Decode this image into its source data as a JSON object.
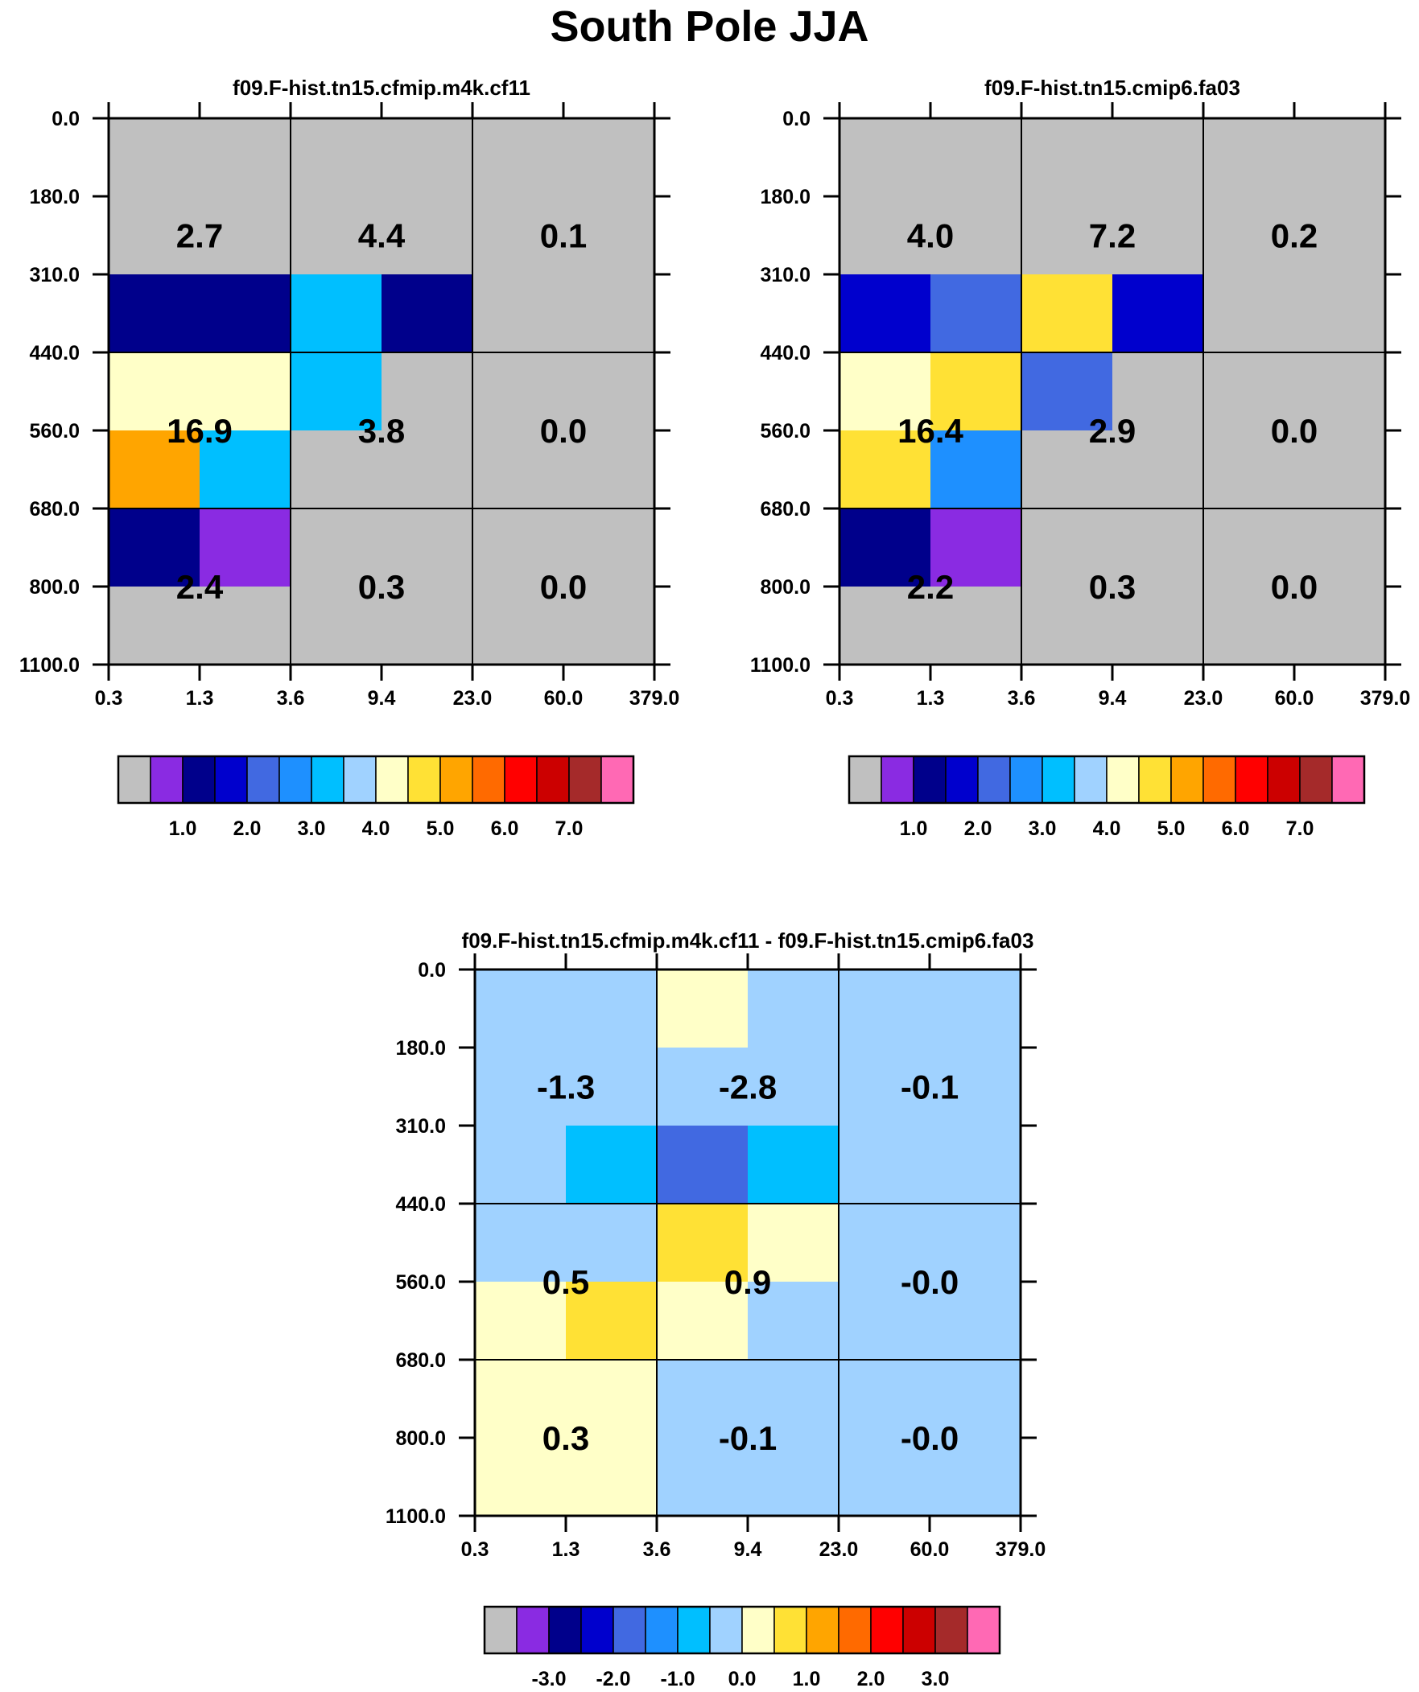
{
  "title": "South Pole JJA",
  "chart_data": [
    {
      "type": "heatmap",
      "title": "f09.F-hist.tn15.cfmip.m4k.cf11",
      "x_ticks": [
        "0.3",
        "1.3",
        "3.6",
        "9.4",
        "23.0",
        "60.0",
        "379.0"
      ],
      "y_ticks": [
        "0.0",
        "180.0",
        "310.0",
        "440.0",
        "560.0",
        "680.0",
        "800.0",
        "1100.0"
      ],
      "cells": [
        [
          "gray",
          "gray",
          "gray",
          "gray",
          "gray",
          "gray"
        ],
        [
          "gray",
          "gray",
          "gray",
          "gray",
          "gray",
          "gray"
        ],
        [
          "navy",
          "navy",
          "deepskyblue",
          "navy",
          "gray",
          "gray"
        ],
        [
          "lightyellow",
          "lightyellow",
          "deepskyblue",
          "gray",
          "gray",
          "gray"
        ],
        [
          "orange",
          "deepskyblue",
          "gray",
          "gray",
          "gray",
          "gray"
        ],
        [
          "navy",
          "purple",
          "gray",
          "gray",
          "gray",
          "gray"
        ],
        [
          "gray",
          "gray",
          "gray",
          "gray",
          "gray",
          "gray"
        ]
      ],
      "block_values": [
        [
          "2.7",
          "4.4",
          "0.1"
        ],
        [
          "16.9",
          "3.8",
          "0.0"
        ],
        [
          "2.4",
          "0.3",
          "0.0"
        ]
      ],
      "colorbar": {
        "labels": [
          "1.0",
          "2.0",
          "3.0",
          "4.0",
          "5.0",
          "6.0",
          "7.0"
        ],
        "colors": [
          "#c0c0c0",
          "#8a2be2",
          "#00008b",
          "#0000cd",
          "#4169e1",
          "#1e90ff",
          "#00bfff",
          "#a0d2ff",
          "#ffffc8",
          "#ffe135",
          "#ffa500",
          "#ff6a00",
          "#ff0000",
          "#cc0000",
          "#a52a2a",
          "#ff69b4"
        ]
      }
    },
    {
      "type": "heatmap",
      "title": "f09.F-hist.tn15.cmip6.fa03",
      "x_ticks": [
        "0.3",
        "1.3",
        "3.6",
        "9.4",
        "23.0",
        "60.0",
        "379.0"
      ],
      "y_ticks": [
        "0.0",
        "180.0",
        "310.0",
        "440.0",
        "560.0",
        "680.0",
        "800.0",
        "1100.0"
      ],
      "cells": [
        [
          "gray",
          "gray",
          "gray",
          "gray",
          "gray",
          "gray"
        ],
        [
          "gray",
          "gray",
          "gray",
          "gray",
          "gray",
          "gray"
        ],
        [
          "mediumblue",
          "royalblue",
          "gold",
          "mediumblue",
          "gray",
          "gray"
        ],
        [
          "lightyellow",
          "gold",
          "royalblue",
          "gray",
          "gray",
          "gray"
        ],
        [
          "gold",
          "dodgerblue",
          "gray",
          "gray",
          "gray",
          "gray"
        ],
        [
          "navy",
          "purple",
          "gray",
          "gray",
          "gray",
          "gray"
        ],
        [
          "gray",
          "gray",
          "gray",
          "gray",
          "gray",
          "gray"
        ]
      ],
      "block_values": [
        [
          "4.0",
          "7.2",
          "0.2"
        ],
        [
          "16.4",
          "2.9",
          "0.0"
        ],
        [
          "2.2",
          "0.3",
          "0.0"
        ]
      ],
      "colorbar": {
        "labels": [
          "1.0",
          "2.0",
          "3.0",
          "4.0",
          "5.0",
          "6.0",
          "7.0"
        ],
        "colors": [
          "#c0c0c0",
          "#8a2be2",
          "#00008b",
          "#0000cd",
          "#4169e1",
          "#1e90ff",
          "#00bfff",
          "#a0d2ff",
          "#ffffc8",
          "#ffe135",
          "#ffa500",
          "#ff6a00",
          "#ff0000",
          "#cc0000",
          "#a52a2a",
          "#ff69b4"
        ]
      }
    },
    {
      "type": "heatmap",
      "title": "f09.F-hist.tn15.cfmip.m4k.cf11 - f09.F-hist.tn15.cmip6.fa03",
      "x_ticks": [
        "0.3",
        "1.3",
        "3.6",
        "9.4",
        "23.0",
        "60.0",
        "379.0"
      ],
      "y_ticks": [
        "0.0",
        "180.0",
        "310.0",
        "440.0",
        "560.0",
        "680.0",
        "800.0",
        "1100.0"
      ],
      "cells": [
        [
          "lightblue",
          "lightblue",
          "lightyellow",
          "lightblue",
          "lightblue",
          "lightblue"
        ],
        [
          "lightblue",
          "lightblue",
          "lightblue",
          "lightblue",
          "lightblue",
          "lightblue"
        ],
        [
          "lightblue",
          "deepskyblue",
          "royalblue",
          "deepskyblue",
          "lightblue",
          "lightblue"
        ],
        [
          "lightblue",
          "lightblue",
          "gold",
          "lightyellow",
          "lightblue",
          "lightblue"
        ],
        [
          "lightyellow",
          "gold",
          "lightyellow",
          "lightblue",
          "lightblue",
          "lightblue"
        ],
        [
          "lightyellow",
          "lightyellow",
          "lightblue",
          "lightblue",
          "lightblue",
          "lightblue"
        ],
        [
          "lightyellow",
          "lightyellow",
          "lightblue",
          "lightblue",
          "lightblue",
          "lightblue"
        ]
      ],
      "block_values": [
        [
          "-1.3",
          "-2.8",
          "-0.1"
        ],
        [
          "0.5",
          "0.9",
          "-0.0"
        ],
        [
          "0.3",
          "-0.1",
          "-0.0"
        ]
      ],
      "colorbar": {
        "labels": [
          "-3.0",
          "-2.0",
          "-1.0",
          "0.0",
          "1.0",
          "2.0",
          "3.0"
        ],
        "colors": [
          "#c0c0c0",
          "#8a2be2",
          "#00008b",
          "#0000cd",
          "#4169e1",
          "#1e90ff",
          "#00bfff",
          "#a0d2ff",
          "#ffffc8",
          "#ffe135",
          "#ffa500",
          "#ff6a00",
          "#ff0000",
          "#cc0000",
          "#a52a2a",
          "#ff69b4"
        ]
      }
    }
  ],
  "palette": {
    "gray": "#c0c0c0",
    "purple": "#8a2be2",
    "navy": "#00008b",
    "mediumblue": "#0000cd",
    "royalblue": "#4169e1",
    "dodgerblue": "#1e90ff",
    "deepskyblue": "#00bfff",
    "lightblue": "#a0d2ff",
    "lightyellow": "#ffffc8",
    "gold": "#ffe135",
    "orange": "#ffa500"
  }
}
